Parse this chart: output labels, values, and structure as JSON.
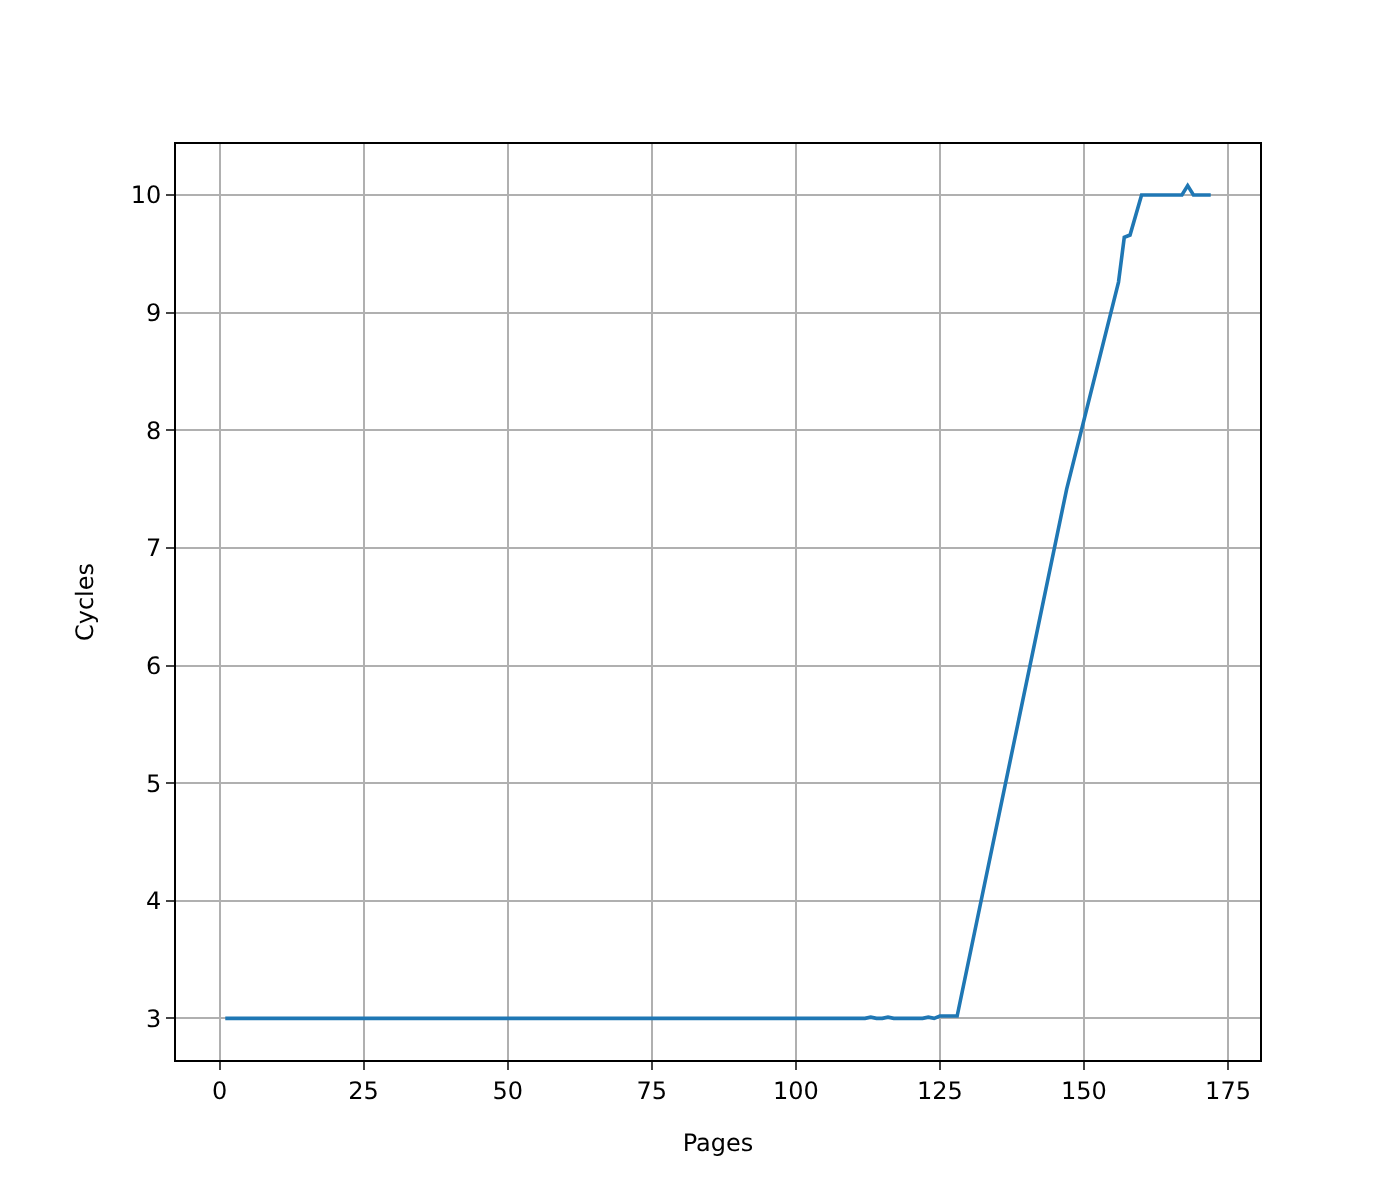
{
  "chart_data": {
    "type": "line",
    "xlabel": "Pages",
    "ylabel": "Cycles",
    "x": [
      1,
      112,
      113,
      114,
      115,
      116,
      117,
      122,
      123,
      124,
      125,
      128,
      147,
      156,
      157,
      158,
      160,
      167,
      168,
      169,
      172
    ],
    "series": [
      {
        "color": "#1f77b4",
        "values": [
          3,
          3,
          3.01,
          3,
          3,
          3.01,
          3,
          3,
          3.01,
          3,
          3.02,
          3.02,
          7.5,
          9.26,
          9.64,
          9.66,
          10,
          10,
          10.08,
          10,
          10
        ]
      }
    ],
    "xlim": [
      -7.55,
      180.55
    ],
    "ylim": [
      2.646,
      10.434
    ],
    "xticks": [
      0,
      25,
      50,
      75,
      100,
      125,
      150,
      175
    ],
    "yticks": [
      3,
      4,
      5,
      6,
      7,
      8,
      9,
      10
    ],
    "grid": true,
    "legend": false,
    "marker": "none",
    "line_style": "solid"
  }
}
